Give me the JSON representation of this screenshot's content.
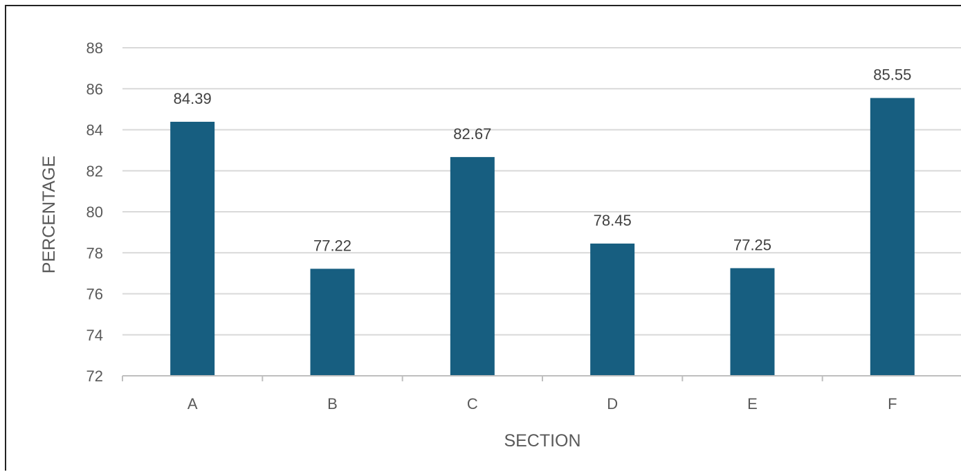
{
  "chart_data": {
    "type": "bar",
    "title": "",
    "xlabel": "SECTION",
    "ylabel": "PERCENTAGE",
    "categories": [
      "A",
      "B",
      "C",
      "D",
      "E",
      "F"
    ],
    "values": [
      84.39,
      77.22,
      82.67,
      78.45,
      77.25,
      85.55
    ],
    "data_labels": [
      "84.39",
      "77.22",
      "82.67",
      "78.45",
      "77.25",
      "85.55"
    ],
    "ylim": [
      72,
      88
    ],
    "yticks": [
      72,
      74,
      76,
      78,
      80,
      82,
      84,
      86,
      88
    ],
    "grid": true,
    "legend": "none",
    "colors": {
      "bar": "#175e80",
      "grid": "#d9d9d9",
      "axis": "#bfbfbf",
      "text": "#595959",
      "label": "#404040"
    }
  }
}
